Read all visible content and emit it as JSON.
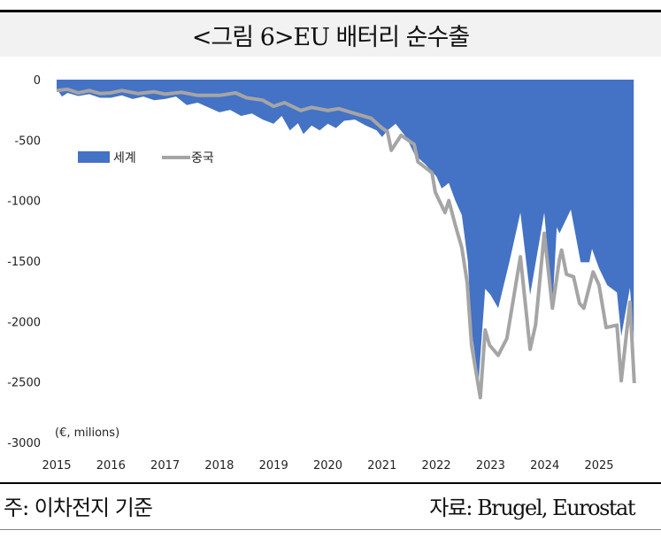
{
  "title": "<그림 6>EU 배터리 순수출",
  "footer": {
    "note": "주: 이차전지 기준",
    "source": "자료: Brugel, Eurostat"
  },
  "colors": {
    "world": "#4472C4",
    "china": "#A5A5A5"
  },
  "chart_data": {
    "type": "area",
    "title": "<그림 6>EU 배터리 순수출",
    "unit_label": "(€, milions)",
    "xlim": [
      2015,
      2025.65
    ],
    "ylim": [
      -3000,
      0
    ],
    "x_ticks": [
      "2015",
      "2016",
      "2017",
      "2018",
      "2019",
      "2020",
      "2021",
      "2022",
      "2023",
      "2024",
      "2025"
    ],
    "y_ticks": [
      "0",
      "-500",
      "-1000",
      "-1500",
      "-2000",
      "-2500",
      "-3000"
    ],
    "y_tick_values": [
      0,
      -500,
      -1000,
      -1500,
      -2000,
      -2500,
      -3000
    ],
    "legend": {
      "placement": "upper-left",
      "entries": [
        "세계",
        "중국"
      ]
    },
    "series": [
      {
        "name": "세계",
        "type": "area",
        "points": [
          [
            2015.0,
            -75
          ],
          [
            2015.1,
            -140
          ],
          [
            2015.2,
            -110
          ],
          [
            2015.4,
            -135
          ],
          [
            2015.6,
            -120
          ],
          [
            2015.8,
            -150
          ],
          [
            2016.0,
            -150
          ],
          [
            2016.2,
            -130
          ],
          [
            2016.4,
            -160
          ],
          [
            2016.6,
            -140
          ],
          [
            2016.8,
            -170
          ],
          [
            2017.0,
            -160
          ],
          [
            2017.2,
            -140
          ],
          [
            2017.4,
            -210
          ],
          [
            2017.6,
            -190
          ],
          [
            2017.8,
            -230
          ],
          [
            2018.0,
            -270
          ],
          [
            2018.2,
            -250
          ],
          [
            2018.4,
            -300
          ],
          [
            2018.6,
            -280
          ],
          [
            2018.8,
            -330
          ],
          [
            2019.0,
            -365
          ],
          [
            2019.15,
            -300
          ],
          [
            2019.3,
            -420
          ],
          [
            2019.45,
            -360
          ],
          [
            2019.55,
            -450
          ],
          [
            2019.7,
            -380
          ],
          [
            2019.85,
            -420
          ],
          [
            2020.0,
            -365
          ],
          [
            2020.15,
            -400
          ],
          [
            2020.3,
            -340
          ],
          [
            2020.5,
            -330
          ],
          [
            2020.7,
            -380
          ],
          [
            2020.9,
            -420
          ],
          [
            2021.0,
            -475
          ],
          [
            2021.1,
            -420
          ],
          [
            2021.25,
            -365
          ],
          [
            2021.45,
            -480
          ],
          [
            2021.6,
            -620
          ],
          [
            2021.8,
            -700
          ],
          [
            2022.0,
            -800
          ],
          [
            2022.1,
            -900
          ],
          [
            2022.23,
            -855
          ],
          [
            2022.35,
            -1000
          ],
          [
            2022.47,
            -1120
          ],
          [
            2022.58,
            -1500
          ],
          [
            2022.65,
            -2070
          ],
          [
            2022.78,
            -2490
          ],
          [
            2022.9,
            -1730
          ],
          [
            2023.0,
            -1780
          ],
          [
            2023.14,
            -1890
          ],
          [
            2023.35,
            -1500
          ],
          [
            2023.55,
            -1100
          ],
          [
            2023.73,
            -1780
          ],
          [
            2023.99,
            -1100
          ],
          [
            2024.14,
            -1880
          ],
          [
            2024.22,
            -1220
          ],
          [
            2024.27,
            -1270
          ],
          [
            2024.48,
            -1075
          ],
          [
            2024.66,
            -1510
          ],
          [
            2024.82,
            -1510
          ],
          [
            2024.87,
            -1400
          ],
          [
            2025.0,
            -1560
          ],
          [
            2025.15,
            -1700
          ],
          [
            2025.33,
            -1760
          ],
          [
            2025.41,
            -2120
          ],
          [
            2025.57,
            -1720
          ],
          [
            2025.64,
            -2140
          ]
        ]
      },
      {
        "name": "중국",
        "type": "line",
        "points": [
          [
            2015.0,
            -90
          ],
          [
            2015.2,
            -80
          ],
          [
            2015.4,
            -110
          ],
          [
            2015.6,
            -90
          ],
          [
            2015.8,
            -115
          ],
          [
            2016.0,
            -110
          ],
          [
            2016.2,
            -90
          ],
          [
            2016.5,
            -115
          ],
          [
            2016.8,
            -100
          ],
          [
            2017.0,
            -120
          ],
          [
            2017.3,
            -105
          ],
          [
            2017.6,
            -130
          ],
          [
            2018.0,
            -130
          ],
          [
            2018.3,
            -110
          ],
          [
            2018.5,
            -150
          ],
          [
            2018.8,
            -170
          ],
          [
            2019.0,
            -220
          ],
          [
            2019.2,
            -190
          ],
          [
            2019.5,
            -255
          ],
          [
            2019.7,
            -230
          ],
          [
            2020.0,
            -255
          ],
          [
            2020.2,
            -240
          ],
          [
            2020.5,
            -280
          ],
          [
            2020.8,
            -320
          ],
          [
            2021.0,
            -400
          ],
          [
            2021.1,
            -430
          ],
          [
            2021.17,
            -585
          ],
          [
            2021.35,
            -460
          ],
          [
            2021.59,
            -535
          ],
          [
            2021.66,
            -680
          ],
          [
            2021.92,
            -770
          ],
          [
            2021.98,
            -930
          ],
          [
            2022.16,
            -1100
          ],
          [
            2022.23,
            -1000
          ],
          [
            2022.36,
            -1220
          ],
          [
            2022.47,
            -1390
          ],
          [
            2022.57,
            -1680
          ],
          [
            2022.65,
            -2195
          ],
          [
            2022.81,
            -2630
          ],
          [
            2022.9,
            -2070
          ],
          [
            2022.98,
            -2195
          ],
          [
            2023.14,
            -2280
          ],
          [
            2023.3,
            -2140
          ],
          [
            2023.55,
            -1465
          ],
          [
            2023.73,
            -2230
          ],
          [
            2023.83,
            -2025
          ],
          [
            2023.99,
            -1270
          ],
          [
            2024.14,
            -1890
          ],
          [
            2024.27,
            -1480
          ],
          [
            2024.31,
            -1410
          ],
          [
            2024.4,
            -1610
          ],
          [
            2024.53,
            -1630
          ],
          [
            2024.64,
            -1850
          ],
          [
            2024.72,
            -1890
          ],
          [
            2024.89,
            -1590
          ],
          [
            2025.0,
            -1700
          ],
          [
            2025.13,
            -2050
          ],
          [
            2025.33,
            -2030
          ],
          [
            2025.41,
            -2490
          ],
          [
            2025.57,
            -1840
          ],
          [
            2025.65,
            -2510
          ]
        ]
      }
    ]
  }
}
